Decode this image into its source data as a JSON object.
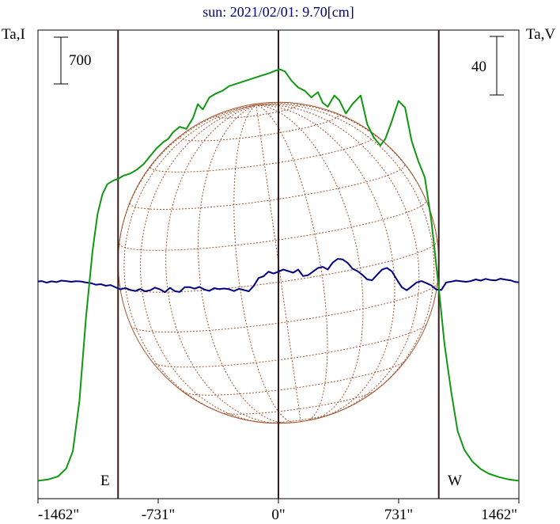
{
  "chart_data": {
    "type": "line",
    "title": "sun: 2021/02/01: 9.70[cm]",
    "left_axis_label": "Ta,I",
    "right_axis_label": "Ta,V",
    "left_scale_label": "700",
    "right_scale_label": "40",
    "limb_labels": {
      "east": "E",
      "west": "W"
    },
    "x_ticks": [
      {
        "value": -1462,
        "label": "-1462\""
      },
      {
        "value": -731,
        "label": "-731\""
      },
      {
        "value": 0,
        "label": "0\""
      },
      {
        "value": 731,
        "label": "731\""
      },
      {
        "value": 1462,
        "label": "1462\""
      }
    ],
    "xlim": [
      -1462,
      1462
    ],
    "solar_radius_arcsec": 975,
    "marker_lines_x": [
      -975,
      0,
      975
    ],
    "colors": {
      "stokes_i": "#109810",
      "stokes_v": "#000080",
      "grid": "#a0522d",
      "frame": "#000000",
      "markers": "#3a1a1a",
      "title": "#000080"
    },
    "series": [
      {
        "key": "stokes_i",
        "points": [
          [
            -1462,
            55
          ],
          [
            -1400,
            75
          ],
          [
            -1340,
            120
          ],
          [
            -1290,
            240
          ],
          [
            -1250,
            500
          ],
          [
            -1210,
            1250
          ],
          [
            -1170,
            2500
          ],
          [
            -1130,
            3500
          ],
          [
            -1100,
            4050
          ],
          [
            -1070,
            4350
          ],
          [
            -1040,
            4500
          ],
          [
            -1000,
            4560
          ],
          [
            -975,
            4580
          ],
          [
            -940,
            4630
          ],
          [
            -900,
            4660
          ],
          [
            -860,
            4720
          ],
          [
            -820,
            4800
          ],
          [
            -780,
            4920
          ],
          [
            -740,
            5040
          ],
          [
            -700,
            5130
          ],
          [
            -670,
            5180
          ],
          [
            -640,
            5280
          ],
          [
            -600,
            5360
          ],
          [
            -560,
            5330
          ],
          [
            -520,
            5490
          ],
          [
            -490,
            5700
          ],
          [
            -460,
            5620
          ],
          [
            -420,
            5800
          ],
          [
            -380,
            5860
          ],
          [
            -340,
            5900
          ],
          [
            -300,
            5970
          ],
          [
            -250,
            6010
          ],
          [
            -200,
            6050
          ],
          [
            -150,
            6090
          ],
          [
            -100,
            6130
          ],
          [
            -60,
            6160
          ],
          [
            -20,
            6200
          ],
          [
            10,
            6220
          ],
          [
            40,
            6190
          ],
          [
            80,
            6050
          ],
          [
            120,
            5950
          ],
          [
            160,
            5900
          ],
          [
            200,
            5800
          ],
          [
            240,
            5880
          ],
          [
            270,
            5720
          ],
          [
            300,
            5660
          ],
          [
            340,
            5830
          ],
          [
            370,
            5760
          ],
          [
            410,
            5560
          ],
          [
            450,
            5700
          ],
          [
            500,
            5830
          ],
          [
            540,
            5400
          ],
          [
            580,
            5200
          ],
          [
            620,
            5080
          ],
          [
            650,
            5180
          ],
          [
            690,
            5450
          ],
          [
            730,
            5750
          ],
          [
            770,
            5650
          ],
          [
            810,
            5150
          ],
          [
            850,
            4850
          ],
          [
            890,
            4600
          ],
          [
            930,
            3950
          ],
          [
            975,
            2950
          ],
          [
            1010,
            2100
          ],
          [
            1050,
            1400
          ],
          [
            1090,
            800
          ],
          [
            1130,
            520
          ],
          [
            1180,
            340
          ],
          [
            1230,
            230
          ],
          [
            1280,
            160
          ],
          [
            1340,
            110
          ],
          [
            1400,
            75
          ],
          [
            1462,
            55
          ]
        ]
      },
      {
        "key": "stokes_v",
        "points": [
          [
            -1462,
            0.2
          ],
          [
            -1440,
            0.5
          ],
          [
            -1410,
            -0.6
          ],
          [
            -1380,
            0.3
          ],
          [
            -1350,
            -0.2
          ],
          [
            -1320,
            0.8
          ],
          [
            -1290,
            0.5
          ],
          [
            -1260,
            0.0
          ],
          [
            -1230,
            0.4
          ],
          [
            -1200,
            0.2
          ],
          [
            -1170,
            -0.5
          ],
          [
            -1140,
            -0.9
          ],
          [
            -1110,
            -2.0
          ],
          [
            -1080,
            -1.6
          ],
          [
            -1050,
            -2.7
          ],
          [
            -1020,
            -2.2
          ],
          [
            -990,
            -3.8
          ],
          [
            -960,
            -5.2
          ],
          [
            -930,
            -4.2
          ],
          [
            -900,
            -5.6
          ],
          [
            -870,
            -6.3
          ],
          [
            -840,
            -4.9
          ],
          [
            -810,
            -6.5
          ],
          [
            -780,
            -5.8
          ],
          [
            -750,
            -4.0
          ],
          [
            -720,
            -5.2
          ],
          [
            -690,
            -7.1
          ],
          [
            -660,
            -4.1
          ],
          [
            -630,
            -6.4
          ],
          [
            -600,
            -7.0
          ],
          [
            -570,
            -3.7
          ],
          [
            -540,
            -3.6
          ],
          [
            -510,
            -4.7
          ],
          [
            -480,
            -3.5
          ],
          [
            -450,
            -5.3
          ],
          [
            -420,
            -6.2
          ],
          [
            -390,
            -4.3
          ],
          [
            -360,
            -5.0
          ],
          [
            -330,
            -4.6
          ],
          [
            -300,
            -5.1
          ],
          [
            -270,
            -6.3
          ],
          [
            -240,
            -4.8
          ],
          [
            -210,
            -5.6
          ],
          [
            -180,
            -6.5
          ],
          [
            -150,
            -2.8
          ],
          [
            -120,
            2.6
          ],
          [
            -90,
            3.8
          ],
          [
            -60,
            6.9
          ],
          [
            -30,
            5.6
          ],
          [
            0,
            6.9
          ],
          [
            30,
            8.3
          ],
          [
            60,
            7.3
          ],
          [
            90,
            6.2
          ],
          [
            120,
            8.3
          ],
          [
            150,
            3.9
          ],
          [
            180,
            4.5
          ],
          [
            210,
            6.9
          ],
          [
            240,
            9.4
          ],
          [
            270,
            10.2
          ],
          [
            300,
            8.4
          ],
          [
            330,
            13.1
          ],
          [
            360,
            15.7
          ],
          [
            390,
            15.3
          ],
          [
            420,
            13.0
          ],
          [
            450,
            9.0
          ],
          [
            480,
            7.3
          ],
          [
            510,
            4.8
          ],
          [
            540,
            1.6
          ],
          [
            570,
            1.1
          ],
          [
            600,
            4.8
          ],
          [
            630,
            8.3
          ],
          [
            660,
            9.5
          ],
          [
            690,
            7.1
          ],
          [
            720,
            1.5
          ],
          [
            750,
            -3.7
          ],
          [
            780,
            -5.8
          ],
          [
            810,
            -3.2
          ],
          [
            840,
            -0.5
          ],
          [
            870,
            0.5
          ],
          [
            900,
            -0.9
          ],
          [
            930,
            -2.5
          ],
          [
            960,
            -5.3
          ],
          [
            990,
            -5.6
          ],
          [
            1020,
            -0.5
          ],
          [
            1050,
            0.1
          ],
          [
            1080,
            0.8
          ],
          [
            1110,
            0.4
          ],
          [
            1140,
            0.0
          ],
          [
            1170,
            0.5
          ],
          [
            1200,
            1.6
          ],
          [
            1230,
            0.8
          ],
          [
            1260,
            2.0
          ],
          [
            1290,
            1.2
          ],
          [
            1320,
            0.9
          ],
          [
            1350,
            2.1
          ],
          [
            1380,
            1.5
          ],
          [
            1410,
            1.0
          ],
          [
            1440,
            -0.1
          ],
          [
            1462,
            -0.3
          ]
        ]
      }
    ]
  }
}
